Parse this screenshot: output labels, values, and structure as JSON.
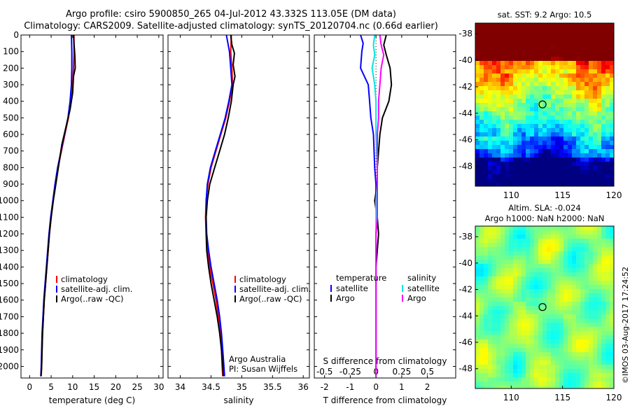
{
  "header": {
    "line1": "Argo profile: csiro 5900850_265 04-Jul-2012 43.332S 113.05E (DM data)",
    "line2": "Climatology: CARS2009. Satellite-adjusted climatology: synTS_20120704.nc (0.66d earlier)"
  },
  "colors": {
    "climatology": "#ff0000",
    "satellite": "#0000ff",
    "argo": "#000000",
    "sal_satellite": "#00e5e5",
    "sal_argo": "#ff00ff"
  },
  "chart_data": [
    {
      "type": "line",
      "xlabel": "temperature (deg C)",
      "ylabel": "",
      "xlim": [
        -2,
        31
      ],
      "ylim": [
        2070,
        0
      ],
      "xticks": [
        0,
        5,
        10,
        15,
        20,
        25,
        30
      ],
      "yticks": [
        0,
        100,
        200,
        300,
        400,
        500,
        600,
        700,
        800,
        900,
        1000,
        1100,
        1200,
        1300,
        1400,
        1500,
        1600,
        1700,
        1800,
        1900,
        2000
      ],
      "legend": [
        "climatology",
        "satellite-adj. clim.",
        "Argo(..raw -QC)"
      ],
      "series": [
        {
          "name": "climatology",
          "color": "#ff0000",
          "x": [
            10.3,
            10.3,
            10.2,
            10.0,
            9.6,
            9.0,
            8.2,
            7.4,
            6.6,
            6.0,
            5.5,
            5.0,
            4.6,
            4.3,
            4.0,
            3.7,
            3.4,
            3.2,
            3.0,
            2.9,
            2.8,
            2.7
          ],
          "y": [
            0,
            100,
            200,
            300,
            400,
            500,
            600,
            700,
            800,
            900,
            1000,
            1100,
            1200,
            1300,
            1400,
            1500,
            1600,
            1700,
            1800,
            1900,
            2000,
            2060
          ]
        },
        {
          "name": "satellite-adj. clim.",
          "color": "#0000ff",
          "x": [
            9.7,
            9.8,
            9.8,
            9.7,
            9.4,
            8.9,
            8.1,
            7.3,
            6.5,
            5.9,
            5.4,
            4.9,
            4.5,
            4.2,
            3.9,
            3.6,
            3.3,
            3.1,
            2.9,
            2.8,
            2.7,
            2.6
          ],
          "y": [
            0,
            100,
            200,
            300,
            400,
            500,
            600,
            700,
            800,
            900,
            1000,
            1100,
            1200,
            1300,
            1400,
            1500,
            1600,
            1700,
            1800,
            1900,
            2000,
            2060
          ]
        },
        {
          "name": "Argo(..raw -QC)",
          "color": "#000000",
          "x": [
            10.2,
            10.3,
            10.5,
            10.6,
            10.2,
            10.0,
            9.4,
            8.4,
            7.5,
            6.8,
            6.1,
            5.5,
            5.0,
            4.6,
            4.3,
            4.0,
            3.7,
            3.4,
            3.2,
            3.0,
            2.9,
            2.8,
            2.7,
            2.6
          ],
          "y": [
            0,
            50,
            120,
            200,
            250,
            350,
            450,
            560,
            660,
            780,
            900,
            1000,
            1100,
            1200,
            1300,
            1400,
            1500,
            1600,
            1700,
            1800,
            1900,
            2000,
            2040,
            2060
          ]
        }
      ]
    },
    {
      "type": "line",
      "xlabel": "salinity",
      "ylabel": "",
      "xlim": [
        33.8,
        36.1
      ],
      "ylim": [
        2070,
        0
      ],
      "xticks": [
        34,
        34.5,
        35,
        35.5,
        36
      ],
      "legend": [
        "climatology",
        "satellite-adj. clim.",
        "Argo(..raw -QC)"
      ],
      "annotation": [
        "Argo Australia",
        "PI: Susan Wijffels"
      ],
      "series": [
        {
          "name": "climatology",
          "color": "#ff0000",
          "x": [
            34.83,
            34.82,
            34.84,
            34.85,
            34.8,
            34.74,
            34.66,
            34.58,
            34.5,
            34.45,
            34.42,
            34.41,
            34.42,
            34.44,
            34.48,
            34.53,
            34.58,
            34.62,
            34.65,
            34.67,
            34.68,
            34.69
          ],
          "y": [
            0,
            100,
            200,
            300,
            400,
            500,
            600,
            700,
            800,
            900,
            1000,
            1100,
            1200,
            1300,
            1400,
            1500,
            1600,
            1700,
            1800,
            1900,
            2000,
            2060
          ]
        },
        {
          "name": "satellite-adj. clim.",
          "color": "#0000ff",
          "x": [
            34.75,
            34.8,
            34.82,
            34.84,
            34.79,
            34.73,
            34.65,
            34.57,
            34.49,
            34.44,
            34.42,
            34.42,
            34.43,
            34.46,
            34.5,
            34.55,
            34.6,
            34.64,
            34.67,
            34.69,
            34.71,
            34.72
          ],
          "y": [
            0,
            100,
            200,
            300,
            400,
            500,
            600,
            700,
            800,
            900,
            1000,
            1100,
            1200,
            1300,
            1400,
            1500,
            1600,
            1700,
            1800,
            1900,
            2000,
            2060
          ]
        },
        {
          "name": "Argo(..raw -QC)",
          "color": "#000000",
          "x": [
            34.82,
            34.84,
            34.88,
            34.86,
            34.89,
            34.86,
            34.83,
            34.78,
            34.72,
            34.64,
            34.56,
            34.48,
            34.44,
            34.42,
            34.42,
            34.43,
            34.46,
            34.5,
            34.55,
            34.6,
            34.64,
            34.67,
            34.69,
            34.7
          ],
          "y": [
            0,
            60,
            110,
            180,
            250,
            300,
            400,
            500,
            600,
            700,
            800,
            900,
            1000,
            1100,
            1200,
            1300,
            1400,
            1500,
            1600,
            1700,
            1800,
            1900,
            2000,
            2060
          ]
        }
      ]
    },
    {
      "type": "line",
      "xlabel": "T difference from climatology",
      "xlabel_top": "S difference from climatology",
      "ylabel": "",
      "xlim": [
        -2.4,
        3.1
      ],
      "ylim": [
        2070,
        0
      ],
      "xticks": [
        -2,
        -1,
        0,
        1,
        2
      ],
      "xticks_S": [
        -0.5,
        -0.25,
        0,
        0.25,
        0.5
      ],
      "legend_temperature": {
        "title": "temperature",
        "items": [
          "satellite",
          "Argo"
        ]
      },
      "legend_salinity": {
        "title": "salinity",
        "items": [
          "satellite",
          "Argo"
        ]
      },
      "series": [
        {
          "name": "satellite",
          "color": "#0000ff",
          "x": [
            -0.6,
            -0.5,
            -0.55,
            -0.6,
            -0.3,
            -0.25,
            -0.2,
            -0.1,
            -0.05,
            0,
            0,
            0.05,
            0,
            0,
            0,
            0,
            0,
            0,
            0,
            0,
            0,
            0
          ],
          "y": [
            0,
            50,
            100,
            200,
            300,
            400,
            500,
            600,
            800,
            900,
            1000,
            1100,
            1200,
            1300,
            1400,
            1500,
            1600,
            1700,
            1800,
            1900,
            2000,
            2060
          ]
        },
        {
          "name": "Argo",
          "color": "#000000",
          "x": [
            0.4,
            0.3,
            0.4,
            0.55,
            0.6,
            0.5,
            0.25,
            0.15,
            0.05,
            0.05,
            -0.05,
            0.05,
            0.1,
            0.05,
            0,
            0,
            0,
            0,
            0,
            0,
            0,
            0
          ],
          "y": [
            0,
            60,
            120,
            200,
            300,
            400,
            500,
            600,
            800,
            900,
            1000,
            1100,
            1200,
            1300,
            1400,
            1500,
            1600,
            1700,
            1800,
            1900,
            2000,
            2060
          ]
        },
        {
          "name": "salinity satellite",
          "color": "#00e5e5",
          "x": [
            -0.05,
            -0.1,
            -0.05,
            -0.15,
            -0.05,
            0,
            0,
            0,
            0.05,
            0.05,
            0,
            0,
            0,
            0,
            0,
            0,
            0,
            0,
            0,
            0,
            0,
            0
          ],
          "y": [
            0,
            60,
            120,
            200,
            300,
            400,
            500,
            600,
            800,
            900,
            1000,
            1100,
            1200,
            1300,
            1400,
            1500,
            1600,
            1700,
            1800,
            1900,
            2000,
            2060
          ]
        },
        {
          "name": "salinity Argo",
          "color": "#ff00ff",
          "x": [
            0.15,
            0.2,
            0.3,
            0.2,
            0.15,
            0.1,
            0.1,
            0.05,
            0.05,
            0.05,
            0.05,
            0.05,
            0,
            0,
            0,
            0,
            0,
            0,
            0,
            0,
            0,
            0
          ],
          "y": [
            0,
            60,
            120,
            200,
            300,
            400,
            500,
            600,
            800,
            900,
            1000,
            1100,
            1200,
            1300,
            1400,
            1500,
            1600,
            1700,
            1800,
            1900,
            2000,
            2060
          ]
        }
      ]
    },
    {
      "type": "heatmap",
      "title": "sat. SST: 9.2 Argo: 10.5",
      "xlim": [
        106.5,
        120
      ],
      "ylim": [
        -49.5,
        -37.2
      ],
      "xticks": [
        110,
        115,
        120
      ],
      "yticks": [
        -38,
        -40,
        -42,
        -44,
        -46,
        -48
      ],
      "marker": {
        "lon": 113.05,
        "lat": -43.33
      }
    },
    {
      "type": "heatmap",
      "title": "Altim. SLA: -0.024",
      "subtitle": "Argo h1000: NaN h2000: NaN",
      "xlim": [
        106.5,
        120
      ],
      "ylim": [
        -49.5,
        -37.2
      ],
      "xticks": [
        110,
        115,
        120
      ],
      "yticks": [
        -38,
        -40,
        -42,
        -44,
        -46,
        -48
      ],
      "marker": {
        "lon": 113.05,
        "lat": -43.33
      }
    }
  ],
  "panels": {
    "temp": {
      "legend": [
        "climatology",
        "satellite-adj. clim.",
        "Argo(..raw -QC)"
      ]
    },
    "sal": {
      "legend": [
        "climatology",
        "satellite-adj. clim.",
        "Argo(..raw -QC)"
      ],
      "note1": "Argo Australia",
      "note2": "PI: Susan Wijffels"
    },
    "diff": {
      "toplabel": "S difference from climatology",
      "legend_t_title": "temperature",
      "legend_s_title": "salinity",
      "sat": "satellite",
      "argo": "Argo"
    },
    "sst": {
      "title": "sat. SST: 9.2 Argo: 10.5"
    },
    "sla": {
      "title1": "Altim. SLA: -0.024",
      "title2": "Argo h1000: NaN h2000: NaN"
    }
  },
  "footer": {
    "credit": "©IMOS 03-Aug-2017 17:24:52"
  }
}
